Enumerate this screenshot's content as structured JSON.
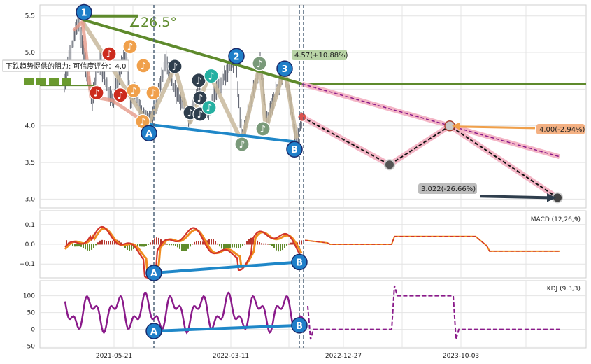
{
  "chart_data": {
    "type": "line",
    "x_tick_labels": [
      "2021-05-21",
      "2022-03-11",
      "2022-12-27",
      "2023-10-03"
    ],
    "price_panel": {
      "y_ticks": [
        3.0,
        3.5,
        4.0,
        4.5,
        5.0,
        5.5
      ],
      "y_tick_labels": [
        "3.0",
        "3.5",
        "4.0",
        "",
        "5.0",
        "5.5"
      ],
      "ylim": [
        2.88,
        5.65
      ],
      "wave_labels": [
        "1",
        "2",
        "3"
      ],
      "pivot_labels": [
        "A",
        "B"
      ],
      "angle_label": "∠26.5°",
      "resistance_note": "下跌趋势提供的阻力: 可信度评分：4.0",
      "annotations": [
        {
          "text": "4.57(+10.88%)",
          "color": "#b9d4a6"
        },
        {
          "text": "4.00(-2.94%)",
          "color": "#f4b183"
        },
        {
          "text": "3.022(-26.66%)",
          "color": "#bdbdbd"
        }
      ],
      "forecast_path": [
        4.12,
        3.47,
        4.0,
        3.02
      ],
      "projection_end_value": 3.58,
      "pattern_lines": {
        "resistance_start": 5.45,
        "resistance_end": 4.57,
        "support_start": 4.02,
        "support_end": 3.78,
        "horizontal_level": 4.57
      }
    },
    "macd_panel": {
      "title": "MACD (12,26,9)",
      "y_ticks": [
        0.1,
        0.0,
        -0.1
      ],
      "y_tick_labels": [
        "0.1",
        "0.0",
        "−0.1"
      ],
      "ylim": [
        -0.17,
        0.17
      ],
      "forecast_level": 0.04,
      "pivot_labels": [
        "A",
        "B"
      ]
    },
    "kdj_panel": {
      "title": "KDJ (9,3,3)",
      "y_ticks": [
        100,
        50,
        0,
        -50
      ],
      "y_tick_labels": [
        "100",
        "50",
        "0",
        "−50"
      ],
      "ylim": [
        -55,
        145
      ],
      "forecast_high": 100,
      "forecast_low": 0,
      "pivot_labels": [
        "A",
        "B"
      ]
    },
    "colors": {
      "trend_green": "#5e8a2c",
      "support_blue": "#1f87c8",
      "forecast_pink": "#f4b6c6",
      "forecast_dash": "#111111",
      "macd_red": "#d2342b",
      "macd_orange": "#f08c1f",
      "kdj_purple": "#8a1a8a",
      "wave_circle": "#1f7fc9"
    }
  }
}
